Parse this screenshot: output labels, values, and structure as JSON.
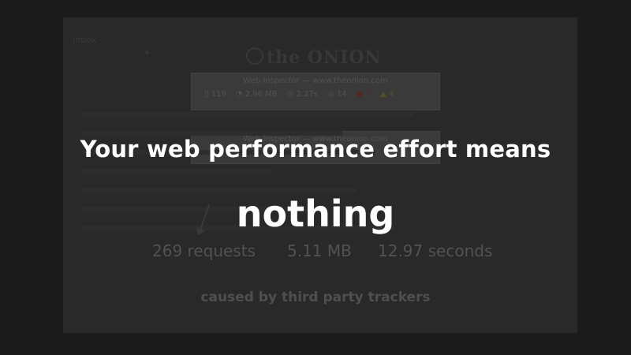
{
  "background": {
    "tab_label": "Inbox",
    "site_logo": "the ONION",
    "inspector_top": {
      "title": "Web Inspector — www.theonion.com",
      "stats": {
        "resources": "119",
        "size": "2.96 MB",
        "time": "2.27s",
        "logs": "14",
        "errors": "1",
        "warnings": "4"
      }
    },
    "inspector_bottom": {
      "title": "Web Inspector — www.theonion.com"
    }
  },
  "slide": {
    "headline": "Your web performance effort means",
    "emphasis": "nothing",
    "metrics": {
      "requests": "269 requests",
      "size": "5.11 MB",
      "time": "12.97 seconds"
    },
    "caption": "caused by third party trackers"
  },
  "colors": {
    "background": "#1b1b1b",
    "headline": "#ffffff",
    "muted": "#525252"
  }
}
